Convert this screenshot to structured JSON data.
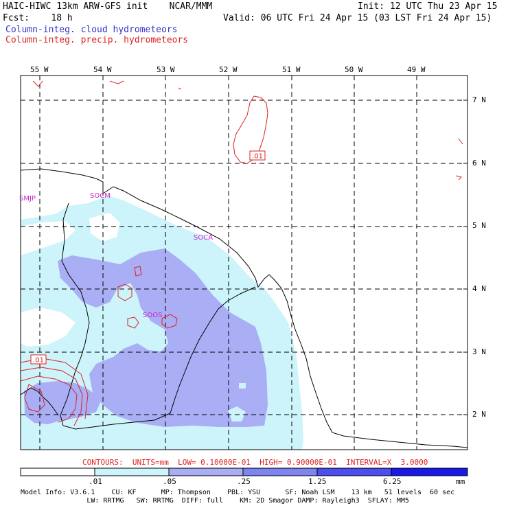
{
  "header": {
    "title_left": "HAIC-HIWC 13km ARW-GFS init    NCAR/MMM",
    "fcst": "Fcst:    18 h",
    "init": "Init: 12 UTC Thu 23 Apr 15",
    "valid": "Valid: 06 UTC Fri 24 Apr 15 (03 LST Fri 24 Apr 15)",
    "legend_cloud": "Column-integ. cloud hydrometeors",
    "legend_precip": "Column-integ. precip. hydrometeors",
    "legend_cloud_color": "#3333cc",
    "legend_precip_color": "#dd2222"
  },
  "axes": {
    "longitudes": [
      "55 W",
      "54 W",
      "53 W",
      "52 W",
      "51 W",
      "50 W",
      "49 W"
    ],
    "latitudes": [
      "7 N",
      "6 N",
      "5 N",
      "4 N",
      "3 N",
      "2 N"
    ]
  },
  "stations": [
    "SMJP",
    "SOCM",
    "SOCA",
    "SOOS"
  ],
  "contour_labels": [
    ".01",
    ".01"
  ],
  "contours_line": "CONTOURS:  UNITS=mm  LOW= 0.10000E-01  HIGH= 0.90000E-01  INTERVAL=X  3.0000",
  "colorbar": {
    "ticks": [
      ".01",
      ".05",
      ".25",
      "1.25",
      "6.25"
    ],
    "units": "mm",
    "colors": [
      "#ffffff",
      "#ccf4fa",
      "#a9aef5",
      "#7f85f0",
      "#4d4df0",
      "#1a1ae8"
    ]
  },
  "model_info": {
    "line1": "Model Info: V3.6.1    CU: KF      MP: Thompson    PBL: YSU      SF: Noah LSM    13 km   51 levels  60 sec",
    "line2": "                LW: RRTMG   SW: RRTMG  DIFF: full    KM: 2D Smagor DAMP: Rayleigh3  SFLAY: MM5"
  }
}
